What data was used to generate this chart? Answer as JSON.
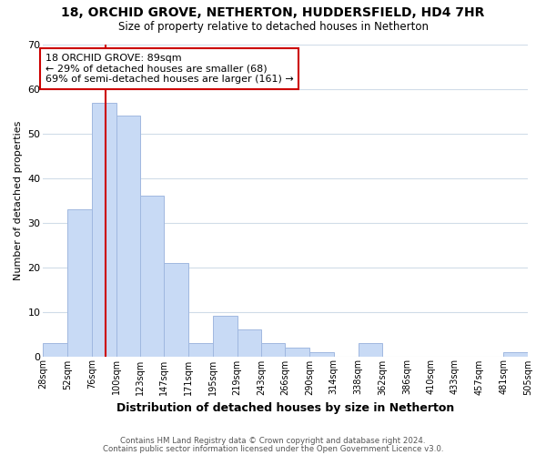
{
  "title_line1": "18, ORCHID GROVE, NETHERTON, HUDDERSFIELD, HD4 7HR",
  "title_line2": "Size of property relative to detached houses in Netherton",
  "xlabel": "Distribution of detached houses by size in Netherton",
  "ylabel": "Number of detached properties",
  "bar_edges": [
    28,
    52,
    76,
    100,
    123,
    147,
    171,
    195,
    219,
    243,
    266,
    290,
    314,
    338,
    362,
    386,
    410,
    433,
    457,
    481,
    505
  ],
  "bar_heights": [
    3,
    33,
    57,
    54,
    36,
    21,
    3,
    9,
    6,
    3,
    2,
    1,
    0,
    3,
    0,
    0,
    0,
    0,
    0,
    1
  ],
  "bar_color": "#c8daf5",
  "bar_edge_color": "#a0b8e0",
  "property_label": "18 ORCHID GROVE: 89sqm",
  "annotation_line1": "← 29% of detached houses are smaller (68)",
  "annotation_line2": "69% of semi-detached houses are larger (161) →",
  "vline_color": "#cc0000",
  "vline_x": 89,
  "annotation_box_color": "#ffffff",
  "annotation_box_edge_color": "#cc0000",
  "ylim": [
    0,
    70
  ],
  "yticks": [
    0,
    10,
    20,
    30,
    40,
    50,
    60,
    70
  ],
  "tick_labels": [
    "28sqm",
    "52sqm",
    "76sqm",
    "100sqm",
    "123sqm",
    "147sqm",
    "171sqm",
    "195sqm",
    "219sqm",
    "243sqm",
    "266sqm",
    "290sqm",
    "314sqm",
    "338sqm",
    "362sqm",
    "386sqm",
    "410sqm",
    "433sqm",
    "457sqm",
    "481sqm",
    "505sqm"
  ],
  "footnote1": "Contains HM Land Registry data © Crown copyright and database right 2024.",
  "footnote2": "Contains public sector information licensed under the Open Government Licence v3.0.",
  "bg_color": "#ffffff",
  "grid_color": "#d0dce8"
}
